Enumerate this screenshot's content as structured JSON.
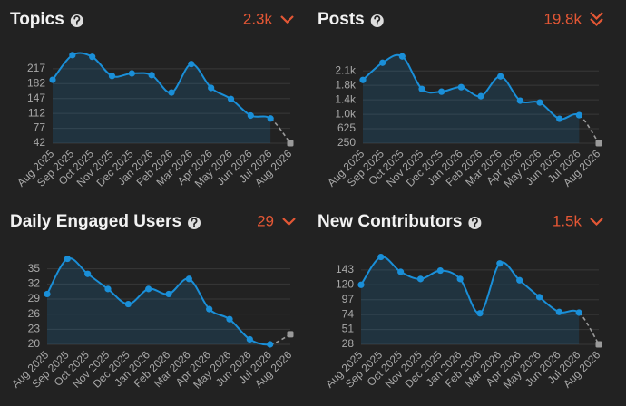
{
  "chart_data": [
    {
      "type": "line",
      "title": "Topics",
      "summary": "2.3k",
      "categories": [
        "Aug 2025",
        "Sep 2025",
        "Oct 2025",
        "Nov 2025",
        "Dec 2025",
        "Jan 2026",
        "Feb 2026",
        "Mar 2026",
        "Apr 2026",
        "May 2026",
        "Jun 2026",
        "Jul 2026",
        "Aug 2026"
      ],
      "values": [
        191,
        249,
        245,
        200,
        206,
        202,
        161,
        228,
        172,
        146,
        107,
        100,
        42
      ],
      "color": "#1a8fd8",
      "forecast_color": "#9a9a9a",
      "ylim": [
        42,
        255
      ],
      "yticks": [
        42,
        77,
        112,
        147,
        182,
        217
      ],
      "grid": true
    },
    {
      "type": "line",
      "title": "Posts",
      "summary": "19.8k",
      "categories": [
        "Aug 2025",
        "Sep 2025",
        "Oct 2025",
        "Nov 2025",
        "Dec 2025",
        "Jan 2026",
        "Feb 2026",
        "Mar 2026",
        "Apr 2026",
        "May 2026",
        "Jun 2026",
        "Jul 2026",
        "Aug 2026"
      ],
      "values": [
        1890,
        2336,
        2500,
        1656,
        1586,
        1703,
        1469,
        1984,
        1352,
        1305,
        883,
        977,
        250
      ],
      "color": "#1a8fd8",
      "forecast_color": "#9a9a9a",
      "ylim": [
        250,
        2600
      ],
      "yticks": [
        250,
        625,
        {
          "value": 1000,
          "label": "1.0k"
        },
        {
          "value": 1375,
          "label": "1.4k"
        },
        {
          "value": 1750,
          "label": "1.8k"
        },
        {
          "value": 2125,
          "label": "2.1k"
        }
      ],
      "grid": true
    },
    {
      "type": "line",
      "title": "Daily Engaged Users",
      "summary": "29",
      "categories": [
        "Aug 2025",
        "Sep 2025",
        "Oct 2025",
        "Nov 2025",
        "Dec 2025",
        "Jan 2026",
        "Feb 2026",
        "Mar 2026",
        "Apr 2026",
        "May 2026",
        "Jun 2026",
        "Jul 2026",
        "Aug 2026"
      ],
      "values": [
        30,
        37,
        34,
        31,
        28,
        31,
        30,
        33,
        27,
        25,
        21,
        20,
        22
      ],
      "color": "#1a8fd8",
      "forecast_color": "#9a9a9a",
      "ylim": [
        20,
        38
      ],
      "yticks": [
        20,
        23,
        26,
        29,
        32,
        35
      ],
      "grid": true
    },
    {
      "type": "line",
      "title": "New Contributors",
      "summary": "1.5k",
      "categories": [
        "Aug 2025",
        "Sep 2025",
        "Oct 2025",
        "Nov 2025",
        "Dec 2025",
        "Jan 2026",
        "Feb 2026",
        "Mar 2026",
        "Apr 2026",
        "May 2026",
        "Jun 2026",
        "Jul 2026",
        "Aug 2026"
      ],
      "values": [
        120,
        163,
        140,
        129,
        142,
        129,
        76,
        153,
        127,
        101,
        78,
        77,
        28
      ],
      "color": "#1a8fd8",
      "forecast_color": "#9a9a9a",
      "ylim": [
        28,
        168
      ],
      "yticks": [
        28,
        51,
        74,
        97,
        120,
        143
      ],
      "grid": true
    }
  ]
}
